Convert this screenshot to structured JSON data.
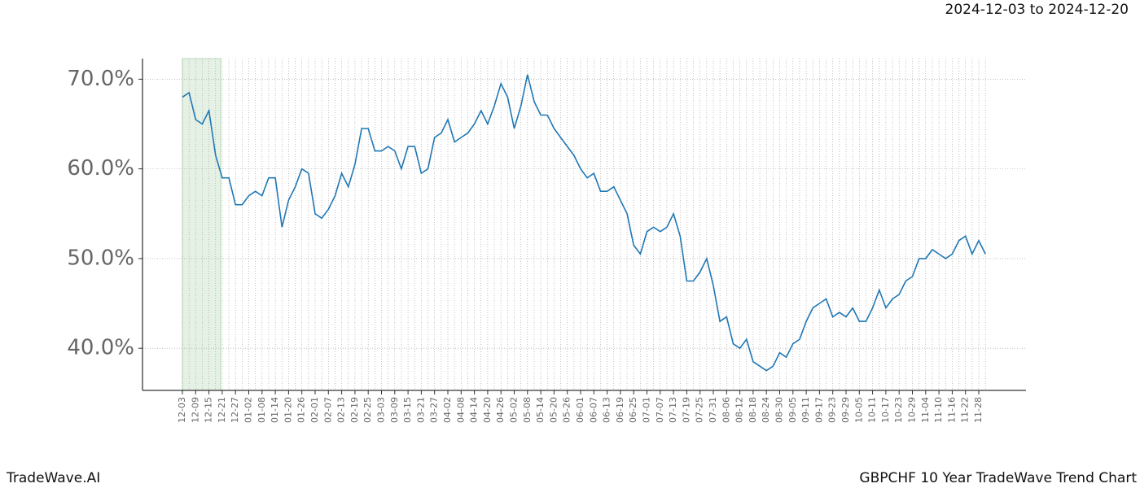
{
  "chart_data": {
    "type": "line",
    "title": "GBPCHF 10 Year TradeWave Trend Chart",
    "date_range": "2024-12-03 to 2024-12-20",
    "watermark": "TradeWave.AI",
    "categories": [
      "12-03",
      null,
      "12-09",
      null,
      "12-15",
      null,
      "12-21",
      null,
      "12-27",
      null,
      "01-02",
      null,
      "01-08",
      null,
      "01-14",
      null,
      "01-20",
      null,
      "01-26",
      null,
      "02-01",
      null,
      "02-07",
      null,
      "02-13",
      null,
      "02-19",
      null,
      "02-25",
      null,
      "03-03",
      null,
      "03-09",
      null,
      "03-15",
      null,
      "03-21",
      null,
      "03-27",
      null,
      "04-02",
      null,
      "04-08",
      null,
      "04-14",
      null,
      "04-20",
      null,
      "04-26",
      null,
      "05-02",
      null,
      "05-08",
      null,
      "05-14",
      null,
      "05-20",
      null,
      "05-26",
      null,
      "06-01",
      null,
      "06-07",
      null,
      "06-13",
      null,
      "06-19",
      null,
      "06-25",
      null,
      "07-01",
      null,
      "07-07",
      null,
      "07-13",
      null,
      "07-19",
      null,
      "07-25",
      null,
      "07-31",
      null,
      "08-06",
      null,
      "08-12",
      null,
      "08-18",
      null,
      "08-24",
      null,
      "08-30",
      null,
      "09-05",
      null,
      "09-11",
      null,
      "09-17",
      null,
      "09-23",
      null,
      "09-29",
      null,
      "10-05",
      null,
      "10-11",
      null,
      "10-17",
      null,
      "10-23",
      null,
      "10-29",
      null,
      "11-04",
      null,
      "11-10",
      null,
      "11-16",
      null,
      "11-22",
      null,
      "11-28",
      null
    ],
    "series": [
      {
        "color": "#1f77b4",
        "values": [
          68,
          68.5,
          65.5,
          65,
          66.5,
          61.5,
          59,
          59,
          56,
          56,
          57,
          57.5,
          57,
          59,
          59,
          53.5,
          56.5,
          58,
          60,
          59.5,
          55,
          54.5,
          55.5,
          57,
          59.5,
          58,
          60.5,
          64.5,
          64.5,
          62,
          62,
          62.5,
          62,
          60,
          62.5,
          62.5,
          59.5,
          60,
          63.5,
          64,
          65.5,
          63,
          63.5,
          64,
          65,
          66.5,
          65,
          67,
          69.5,
          68,
          64.5,
          67,
          70.5,
          67.5,
          66,
          66,
          64.5,
          63.5,
          62.5,
          61.5,
          60,
          59,
          59.5,
          57.5,
          57.5,
          58,
          56.5,
          55,
          51.5,
          50.5,
          53,
          53.5,
          53,
          53.5,
          55,
          52.5,
          47.5,
          47.5,
          48.5,
          50,
          47,
          43,
          43.5,
          40.5,
          40,
          41,
          38.5,
          38,
          37.5,
          38,
          39.5,
          39,
          40.5,
          41,
          43,
          44.5,
          45,
          45.5,
          43.5,
          44,
          43.5,
          44.5,
          43,
          43,
          44.5,
          46.5,
          44.5,
          45.5,
          46,
          47.5,
          48,
          50,
          50,
          51,
          50.5,
          50,
          50.5,
          52,
          52.5,
          50.5,
          52,
          50.5
        ]
      }
    ],
    "ylim": [
      35.3,
      72.3
    ],
    "yticks": [
      {
        "value": 40,
        "label": "40.0%"
      },
      {
        "value": 50,
        "label": "50.0%"
      },
      {
        "value": 60,
        "label": "60.0%"
      },
      {
        "value": 70,
        "label": "70.0%"
      }
    ],
    "grid": true
  }
}
